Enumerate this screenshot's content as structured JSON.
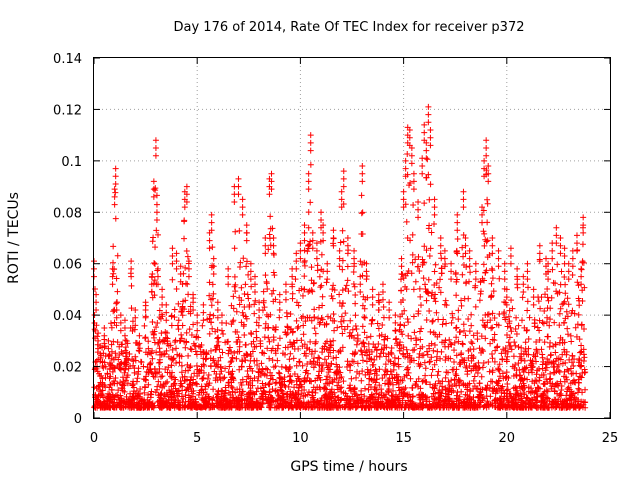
{
  "chart_data": {
    "type": "scatter",
    "title": "Day 176 of 2014, Rate Of TEC Index for receiver p372",
    "xlabel": "GPS time / hours",
    "ylabel": "ROTI / TECUs",
    "xlim": [
      0,
      25
    ],
    "ylim": [
      0,
      0.14
    ],
    "xticks": [
      0,
      5,
      10,
      15,
      20,
      25
    ],
    "xtick_labels": [
      "0",
      "5",
      "10",
      "15",
      "20",
      "25"
    ],
    "yticks": [
      0,
      0.02,
      0.04,
      0.06,
      0.08,
      0.1,
      0.12,
      0.14
    ],
    "ytick_labels": [
      "0",
      "0.02",
      "0.04",
      "0.06",
      "0.08",
      "0.1",
      "0.12",
      "0.14"
    ],
    "grid": true,
    "marker": "plus",
    "color": "#ff0000",
    "series": [
      {
        "name": "ROTI",
        "x": [
          0.0,
          0.1,
          0.2,
          0.3,
          0.5,
          0.7,
          0.9,
          1.0,
          1.05,
          1.1,
          1.3,
          1.5,
          1.8,
          2.0,
          2.2,
          2.5,
          2.8,
          2.9,
          3.0,
          3.05,
          3.1,
          3.3,
          3.5,
          3.8,
          4.0,
          4.2,
          4.4,
          4.5,
          4.6,
          4.8,
          5.0,
          5.3,
          5.6,
          5.7,
          5.8,
          6.0,
          6.2,
          6.5,
          6.8,
          7.0,
          7.2,
          7.4,
          7.6,
          7.8,
          8.0,
          8.3,
          8.5,
          8.6,
          8.7,
          9.0,
          9.3,
          9.6,
          9.8,
          10.0,
          10.2,
          10.4,
          10.5,
          10.6,
          10.8,
          11.0,
          11.1,
          11.3,
          11.6,
          11.9,
          12.0,
          12.1,
          12.3,
          12.6,
          12.9,
          13.0,
          13.2,
          13.5,
          13.8,
          14.0,
          14.3,
          14.6,
          14.9,
          15.0,
          15.1,
          15.2,
          15.3,
          15.4,
          15.5,
          15.7,
          15.9,
          16.0,
          16.1,
          16.2,
          16.3,
          16.5,
          16.8,
          17.0,
          17.3,
          17.6,
          17.9,
          18.0,
          18.2,
          18.5,
          18.8,
          18.9,
          19.0,
          19.1,
          19.3,
          19.6,
          19.9,
          20.0,
          20.2,
          20.5,
          20.8,
          21.0,
          21.3,
          21.6,
          21.9,
          22.0,
          22.2,
          22.4,
          22.6,
          22.8,
          23.0,
          23.2,
          23.4,
          23.6,
          23.7
        ],
        "y": [
          0.061,
          0.048,
          0.033,
          0.028,
          0.035,
          0.03,
          0.058,
          0.089,
          0.097,
          0.045,
          0.04,
          0.038,
          0.061,
          0.042,
          0.032,
          0.045,
          0.055,
          0.092,
          0.108,
          0.083,
          0.058,
          0.05,
          0.044,
          0.066,
          0.064,
          0.059,
          0.088,
          0.09,
          0.061,
          0.048,
          0.04,
          0.044,
          0.072,
          0.079,
          0.062,
          0.045,
          0.04,
          0.058,
          0.09,
          0.093,
          0.085,
          0.075,
          0.06,
          0.055,
          0.045,
          0.07,
          0.093,
          0.095,
          0.07,
          0.048,
          0.052,
          0.058,
          0.064,
          0.068,
          0.075,
          0.095,
          0.11,
          0.072,
          0.068,
          0.08,
          0.075,
          0.06,
          0.073,
          0.065,
          0.088,
          0.096,
          0.07,
          0.065,
          0.055,
          0.098,
          0.06,
          0.05,
          0.048,
          0.052,
          0.045,
          0.04,
          0.062,
          0.088,
          0.1,
          0.113,
          0.112,
          0.105,
          0.095,
          0.084,
          0.101,
          0.114,
          0.107,
          0.121,
          0.112,
          0.085,
          0.07,
          0.065,
          0.06,
          0.079,
          0.088,
          0.07,
          0.065,
          0.06,
          0.082,
          0.1,
          0.108,
          0.098,
          0.07,
          0.065,
          0.06,
          0.05,
          0.066,
          0.058,
          0.055,
          0.06,
          0.05,
          0.067,
          0.062,
          0.06,
          0.068,
          0.074,
          0.07,
          0.066,
          0.06,
          0.065,
          0.071,
          0.058,
          0.078
        ]
      }
    ]
  }
}
